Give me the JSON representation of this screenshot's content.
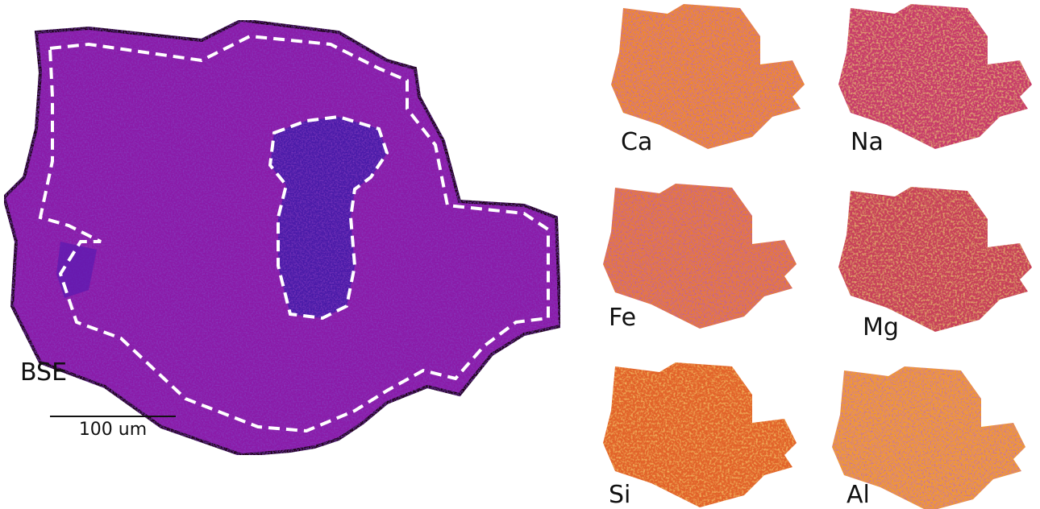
{
  "main": {
    "label": "BSE",
    "scale_bar": "100 um"
  },
  "panels": [
    {
      "label": "Ca"
    },
    {
      "label": "Na"
    },
    {
      "label": "Fe"
    },
    {
      "label": "Mg"
    },
    {
      "label": "Si"
    },
    {
      "label": "Al"
    }
  ]
}
